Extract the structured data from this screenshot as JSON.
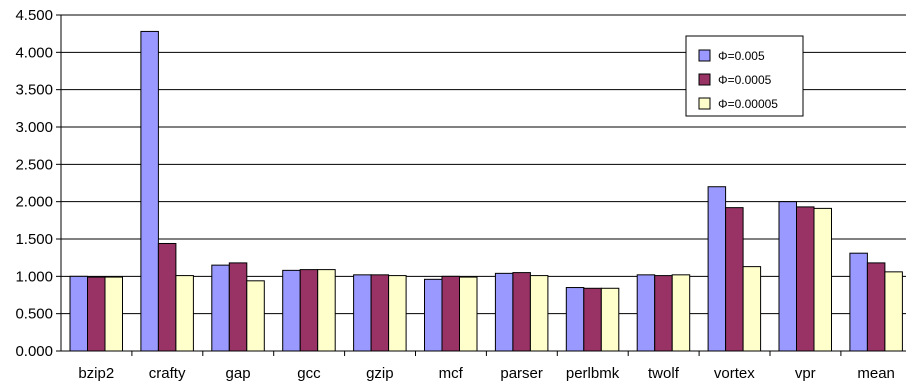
{
  "chart_data": {
    "type": "bar",
    "title": "",
    "xlabel": "",
    "ylabel": "",
    "ylim": [
      0,
      4.5
    ],
    "yticks": [
      "0.000",
      "0.500",
      "1.000",
      "1.500",
      "2.000",
      "2.500",
      "3.000",
      "3.500",
      "4.000",
      "4.500"
    ],
    "grid": true,
    "legend_position": "top-right",
    "categories": [
      "bzip2",
      "crafty",
      "gap",
      "gcc",
      "gzip",
      "mcf",
      "parser",
      "perlbmk",
      "twolf",
      "vortex",
      "vpr",
      "mean"
    ],
    "series": [
      {
        "name": "Φ=0.005",
        "color": "#9999ff",
        "values": [
          1.0,
          4.28,
          1.15,
          1.08,
          1.02,
          0.96,
          1.04,
          0.85,
          1.02,
          2.2,
          2.0,
          1.31
        ]
      },
      {
        "name": "Φ=0.0005",
        "color": "#993366",
        "values": [
          0.99,
          1.44,
          1.18,
          1.09,
          1.02,
          1.0,
          1.05,
          0.84,
          1.01,
          1.92,
          1.93,
          1.18
        ]
      },
      {
        "name": "Φ=0.00005",
        "color": "#ffffcc",
        "values": [
          0.99,
          1.01,
          0.94,
          1.09,
          1.01,
          0.99,
          1.01,
          0.84,
          1.02,
          1.13,
          1.91,
          1.06
        ]
      }
    ]
  }
}
